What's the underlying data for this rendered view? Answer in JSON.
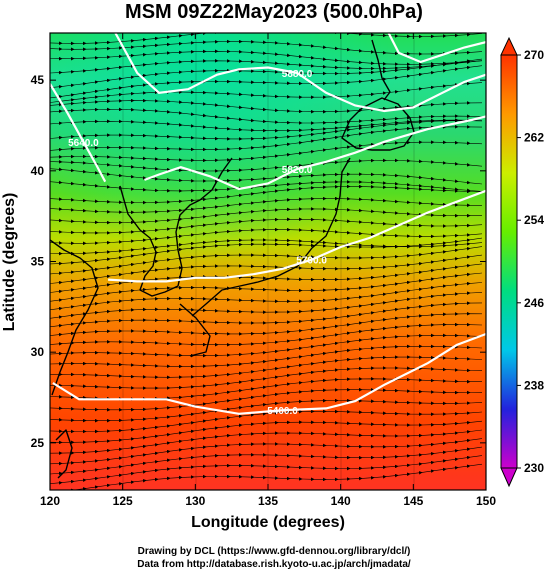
{
  "title": "MSM 09Z22May2023 (500.0hPa)",
  "credits": {
    "line1": "Drawing by DCL (https://www.gfd-dennou.org/library/dcl/)",
    "line2": "Data from http://database.rish.kyoto-u.ac.jp/arch/jmadata/"
  },
  "chart_data": {
    "type": "heatmap",
    "title": "MSM 09Z22May2023 (500.0hPa)",
    "xlabel": "Longitude (degrees)",
    "ylabel": "Latitude  (degrees)",
    "xlim": [
      120,
      150
    ],
    "ylim": [
      22.4,
      47.6
    ],
    "xticks": [
      120,
      125,
      130,
      135,
      140,
      145,
      150
    ],
    "yticks": [
      25,
      30,
      35,
      40,
      45
    ],
    "colorbar": {
      "min": 230,
      "max": 270,
      "ticks": [
        230,
        238,
        246,
        254,
        262,
        270
      ],
      "colors": [
        "#cc00cc",
        "#2222dd",
        "#00c8e8",
        "#00dd80",
        "#66ee00",
        "#ccee00",
        "#ff9900",
        "#ff3300"
      ]
    },
    "contours": [
      {
        "label": "5400.0",
        "points": [
          [
            120.2,
            28.3
          ],
          [
            122,
            27.4
          ],
          [
            125,
            27.4
          ],
          [
            128,
            27.4
          ],
          [
            130,
            27.0
          ],
          [
            133,
            26.6
          ],
          [
            136,
            26.8
          ],
          [
            139,
            26.9
          ],
          [
            141,
            27.3
          ],
          [
            143,
            28.2
          ],
          [
            146,
            29.4
          ],
          [
            148,
            30.4
          ],
          [
            150,
            31.0
          ]
        ]
      },
      {
        "label": "5700.0",
        "points": [
          [
            124,
            34.0
          ],
          [
            126,
            33.9
          ],
          [
            128,
            33.9
          ],
          [
            130,
            34.1
          ],
          [
            132,
            34.1
          ],
          [
            134,
            34.3
          ],
          [
            136,
            34.6
          ],
          [
            138,
            35.1
          ],
          [
            140,
            35.8
          ],
          [
            142,
            36.3
          ],
          [
            144,
            37.0
          ],
          [
            146,
            37.7
          ],
          [
            148,
            38.3
          ],
          [
            150,
            38.9
          ]
        ]
      },
      {
        "label": "5820.0",
        "points": [
          [
            126.5,
            39.5
          ],
          [
            127.5,
            39.8
          ],
          [
            129,
            40.2
          ],
          [
            131,
            39.7
          ],
          [
            133,
            39.0
          ],
          [
            135,
            39.3
          ],
          [
            137,
            40.1
          ],
          [
            139,
            40.5
          ],
          [
            141,
            41.0
          ],
          [
            143,
            41.6
          ],
          [
            146,
            42.3
          ],
          [
            149,
            42.8
          ],
          [
            150,
            43.0
          ]
        ]
      },
      {
        "label": "5880.0",
        "points": [
          [
            124.5,
            47.6
          ],
          [
            126,
            45.4
          ],
          [
            127.5,
            44.3
          ],
          [
            129.5,
            44.5
          ],
          [
            131.5,
            45.3
          ],
          [
            133,
            45.6
          ],
          [
            135,
            45.7
          ],
          [
            137,
            45.4
          ],
          [
            139,
            44.3
          ],
          [
            141,
            43.6
          ],
          [
            143,
            43.3
          ],
          [
            145,
            43.5
          ],
          [
            147,
            44.3
          ],
          [
            148.5,
            44.9
          ],
          [
            150,
            45.3
          ]
        ]
      },
      {
        "label": "5640.0",
        "points": [
          [
            120.0,
            44.8
          ],
          [
            121.2,
            43.2
          ],
          [
            122.3,
            41.6
          ],
          [
            123.2,
            40.3
          ],
          [
            123.8,
            39.4
          ]
        ]
      },
      {
        "label": "",
        "points": [
          [
            143.3,
            47.6
          ],
          [
            144,
            46.5
          ],
          [
            145.5,
            46.0
          ],
          [
            147,
            46.4
          ],
          [
            148.5,
            46.8
          ],
          [
            150,
            47.1
          ]
        ]
      }
    ]
  }
}
